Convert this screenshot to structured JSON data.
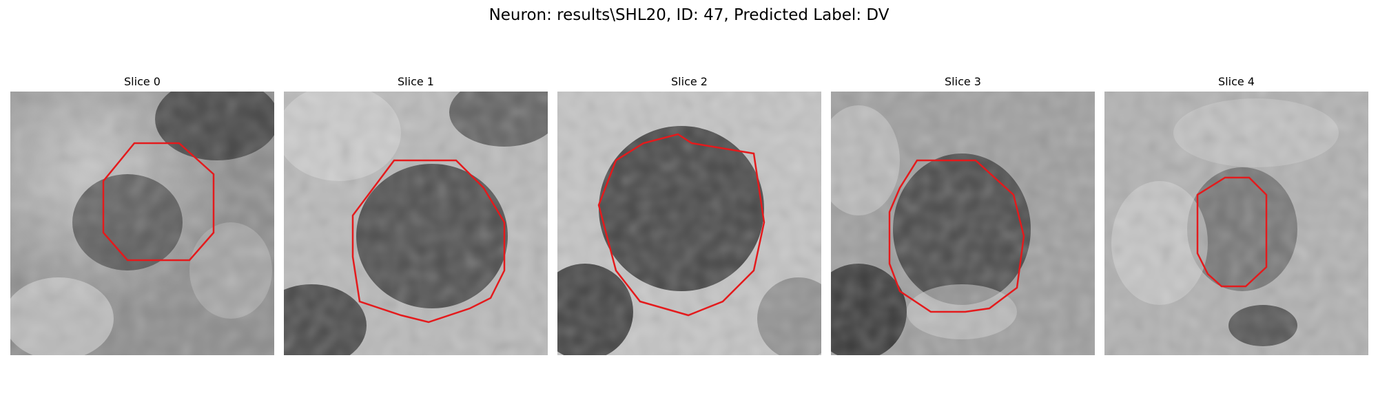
{
  "figure": {
    "title": "Neuron: results\\SHL20, ID: 47, Predicted Label: DV"
  },
  "colors": {
    "contour": "#e41a1c",
    "colormap": "grayscale"
  },
  "slices": [
    {
      "title": "Slice 0",
      "bright_regions": [
        "top-left",
        "left",
        "bottom"
      ],
      "dark_regions": [
        "top-right",
        "center-left"
      ]
    },
    {
      "title": "Slice 1",
      "bright_regions": [
        "top-left",
        "right"
      ],
      "dark_regions": [
        "center",
        "bottom-left",
        "top-right"
      ]
    },
    {
      "title": "Slice 2",
      "bright_regions": [
        "top",
        "left",
        "bottom-center"
      ],
      "dark_regions": [
        "center",
        "bottom-left"
      ]
    },
    {
      "title": "Slice 3",
      "bright_regions": [
        "left",
        "bottom-center"
      ],
      "dark_regions": [
        "center",
        "bottom-left"
      ]
    },
    {
      "title": "Slice 4",
      "bright_regions": [
        "left",
        "top"
      ],
      "dark_regions": [
        "center",
        "bottom-right"
      ]
    }
  ]
}
